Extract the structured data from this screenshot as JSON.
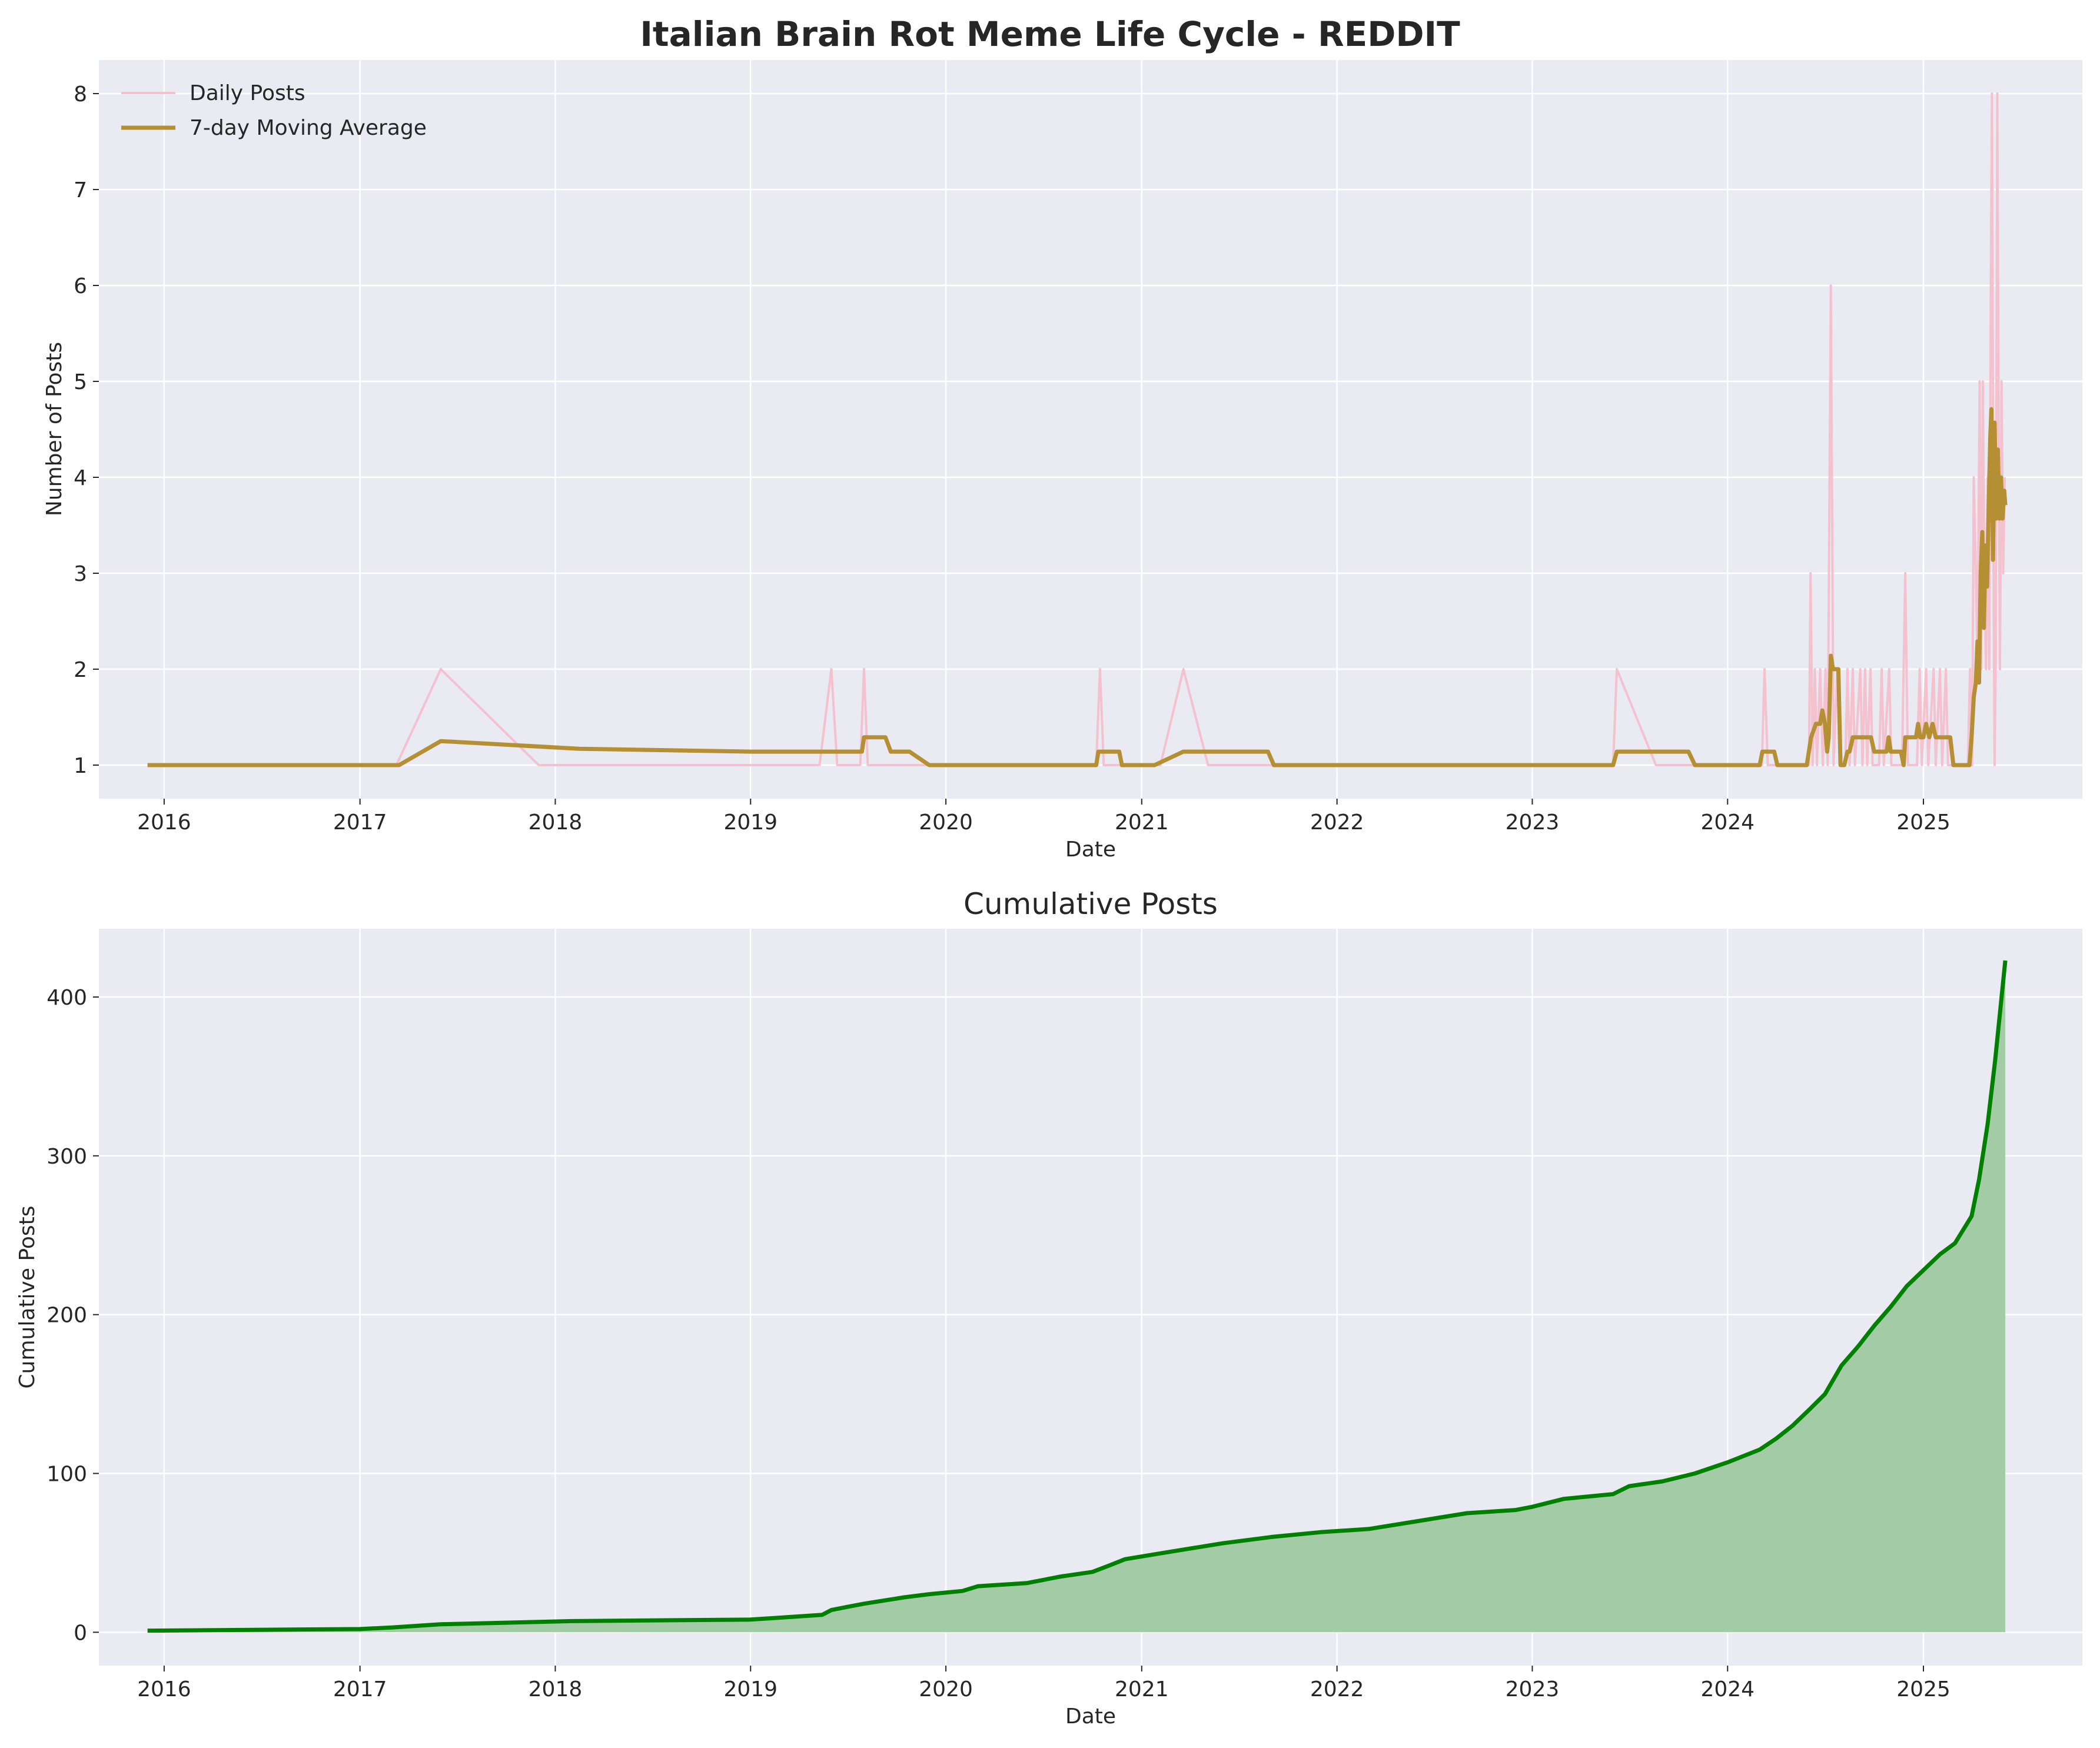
{
  "figure": {
    "title": "Italian Brain Rot Meme Life Cycle - REDDIT"
  },
  "colors": {
    "daily": "#f4c2cf",
    "moving_average": "#b58f33",
    "cumulative_line": "#008000",
    "cumulative_fill": "#a3cca6"
  },
  "chart_data": [
    {
      "type": "line",
      "title": "",
      "xlabel": "Date",
      "ylabel": "Number of Posts",
      "xlim": [
        "2015-09-01",
        "2025-10-25"
      ],
      "ylim": [
        0.65,
        8.35
      ],
      "xticks": [
        "2016",
        "2017",
        "2018",
        "2019",
        "2020",
        "2021",
        "2022",
        "2023",
        "2024",
        "2025"
      ],
      "yticks": [
        1,
        2,
        3,
        4,
        5,
        6,
        7,
        8
      ],
      "grid": true,
      "legend": "top-left",
      "series": [
        {
          "name": "Daily Posts",
          "color": "daily",
          "points": [
            [
              "2015-12-01",
              1
            ],
            [
              "2017-03-10",
              1
            ],
            [
              "2017-06-01",
              2
            ],
            [
              "2017-12-01",
              1
            ],
            [
              "2019-05-10",
              1
            ],
            [
              "2019-06-01",
              2
            ],
            [
              "2019-06-12",
              1
            ],
            [
              "2019-07-25",
              1
            ],
            [
              "2019-08-01",
              2
            ],
            [
              "2019-08-08",
              1
            ],
            [
              "2020-10-08",
              1
            ],
            [
              "2020-10-15",
              2
            ],
            [
              "2020-10-22",
              1
            ],
            [
              "2021-02-05",
              1
            ],
            [
              "2021-03-20",
              2
            ],
            [
              "2021-05-05",
              1
            ],
            [
              "2023-06-01",
              1
            ],
            [
              "2023-06-08",
              2
            ],
            [
              "2023-08-20",
              1
            ],
            [
              "2024-03-05",
              1
            ],
            [
              "2024-03-10",
              2
            ],
            [
              "2024-03-16",
              1
            ],
            [
              "2024-06-01",
              1
            ],
            [
              "2024-06-04",
              3
            ],
            [
              "2024-06-08",
              1
            ],
            [
              "2024-06-12",
              2
            ],
            [
              "2024-06-16",
              1
            ],
            [
              "2024-06-22",
              2
            ],
            [
              "2024-06-27",
              1
            ],
            [
              "2024-07-02",
              2
            ],
            [
              "2024-07-06",
              1
            ],
            [
              "2024-07-12",
              6
            ],
            [
              "2024-07-17",
              1
            ],
            [
              "2024-07-24",
              2
            ],
            [
              "2024-07-29",
              1
            ],
            [
              "2024-08-08",
              1
            ],
            [
              "2024-08-12",
              2
            ],
            [
              "2024-08-16",
              1
            ],
            [
              "2024-08-22",
              2
            ],
            [
              "2024-08-26",
              1
            ],
            [
              "2024-09-05",
              2
            ],
            [
              "2024-09-09",
              1
            ],
            [
              "2024-09-14",
              2
            ],
            [
              "2024-09-18",
              1
            ],
            [
              "2024-09-24",
              2
            ],
            [
              "2024-09-28",
              1
            ],
            [
              "2024-10-10",
              1
            ],
            [
              "2024-10-15",
              2
            ],
            [
              "2024-10-19",
              1
            ],
            [
              "2024-10-29",
              2
            ],
            [
              "2024-11-02",
              1
            ],
            [
              "2024-11-22",
              1
            ],
            [
              "2024-11-28",
              3
            ],
            [
              "2024-12-03",
              1
            ],
            [
              "2024-12-20",
              1
            ],
            [
              "2024-12-25",
              2
            ],
            [
              "2024-12-29",
              1
            ],
            [
              "2025-01-06",
              2
            ],
            [
              "2025-01-10",
              1
            ],
            [
              "2025-01-20",
              2
            ],
            [
              "2025-01-24",
              1
            ],
            [
              "2025-02-01",
              2
            ],
            [
              "2025-02-05",
              1
            ],
            [
              "2025-02-12",
              2
            ],
            [
              "2025-02-16",
              1
            ],
            [
              "2025-03-25",
              1
            ],
            [
              "2025-03-29",
              2
            ],
            [
              "2025-04-02",
              1
            ],
            [
              "2025-04-05",
              4
            ],
            [
              "2025-04-09",
              3
            ],
            [
              "2025-04-12",
              2
            ],
            [
              "2025-04-16",
              5
            ],
            [
              "2025-04-19",
              2
            ],
            [
              "2025-04-22",
              5
            ],
            [
              "2025-04-25",
              3
            ],
            [
              "2025-04-28",
              2
            ],
            [
              "2025-05-01",
              4
            ],
            [
              "2025-05-04",
              2
            ],
            [
              "2025-05-07",
              6
            ],
            [
              "2025-05-09",
              8
            ],
            [
              "2025-05-12",
              3
            ],
            [
              "2025-05-14",
              1
            ],
            [
              "2025-05-16",
              2
            ],
            [
              "2025-05-19",
              8
            ],
            [
              "2025-05-22",
              4
            ],
            [
              "2025-05-24",
              2
            ],
            [
              "2025-05-27",
              5
            ],
            [
              "2025-05-30",
              3
            ],
            [
              "2025-06-02",
              4
            ]
          ]
        },
        {
          "name": "7-day Moving Average",
          "color": "moving_average",
          "points": [
            [
              "2015-12-01",
              1
            ],
            [
              "2017-03-15",
              1
            ],
            [
              "2017-06-01",
              1.25
            ],
            [
              "2018-02-15",
              1.17
            ],
            [
              "2019-01-01",
              1.14
            ],
            [
              "2019-07-28",
              1.14
            ],
            [
              "2019-08-01",
              1.29
            ],
            [
              "2019-09-10",
              1.29
            ],
            [
              "2019-09-20",
              1.14
            ],
            [
              "2019-10-25",
              1.14
            ],
            [
              "2019-12-01",
              1
            ],
            [
              "2020-10-08",
              1
            ],
            [
              "2020-10-12",
              1.14
            ],
            [
              "2020-11-20",
              1.14
            ],
            [
              "2020-11-25",
              1
            ],
            [
              "2021-01-25",
              1
            ],
            [
              "2021-03-20",
              1.14
            ],
            [
              "2021-08-25",
              1.14
            ],
            [
              "2021-09-05",
              1
            ],
            [
              "2023-06-01",
              1
            ],
            [
              "2023-06-08",
              1.14
            ],
            [
              "2023-10-20",
              1.14
            ],
            [
              "2023-11-01",
              1
            ],
            [
              "2024-03-01",
              1
            ],
            [
              "2024-03-06",
              1.14
            ],
            [
              "2024-03-28",
              1.14
            ],
            [
              "2024-04-03",
              1
            ],
            [
              "2024-05-28",
              1
            ],
            [
              "2024-06-05",
              1.29
            ],
            [
              "2024-06-14",
              1.43
            ],
            [
              "2024-06-22",
              1.43
            ],
            [
              "2024-06-26",
              1.57
            ],
            [
              "2024-07-01",
              1.43
            ],
            [
              "2024-07-05",
              1.14
            ],
            [
              "2024-07-08",
              1.29
            ],
            [
              "2024-07-12",
              2.14
            ],
            [
              "2024-07-16",
              2
            ],
            [
              "2024-07-26",
              2
            ],
            [
              "2024-07-30",
              1
            ],
            [
              "2024-08-06",
              1
            ],
            [
              "2024-08-12",
              1.14
            ],
            [
              "2024-08-16",
              1.14
            ],
            [
              "2024-08-22",
              1.29
            ],
            [
              "2024-09-25",
              1.29
            ],
            [
              "2024-10-01",
              1.14
            ],
            [
              "2024-10-24",
              1.14
            ],
            [
              "2024-10-28",
              1.29
            ],
            [
              "2024-11-01",
              1.14
            ],
            [
              "2024-11-20",
              1.14
            ],
            [
              "2024-11-25",
              1
            ],
            [
              "2024-11-28",
              1.29
            ],
            [
              "2024-12-18",
              1.29
            ],
            [
              "2024-12-22",
              1.43
            ],
            [
              "2024-12-26",
              1.29
            ],
            [
              "2025-01-01",
              1.29
            ],
            [
              "2025-01-06",
              1.43
            ],
            [
              "2025-01-12",
              1.29
            ],
            [
              "2025-01-18",
              1.43
            ],
            [
              "2025-01-24",
              1.29
            ],
            [
              "2025-02-20",
              1.29
            ],
            [
              "2025-02-26",
              1
            ],
            [
              "2025-03-28",
              1
            ],
            [
              "2025-04-01",
              1.29
            ],
            [
              "2025-04-05",
              1.71
            ],
            [
              "2025-04-09",
              1.86
            ],
            [
              "2025-04-12",
              2.29
            ],
            [
              "2025-04-15",
              1.86
            ],
            [
              "2025-04-18",
              3
            ],
            [
              "2025-04-21",
              3.43
            ],
            [
              "2025-04-24",
              2.43
            ],
            [
              "2025-04-27",
              3.29
            ],
            [
              "2025-04-30",
              2.86
            ],
            [
              "2025-05-03",
              3.71
            ],
            [
              "2025-05-06",
              4.43
            ],
            [
              "2025-05-08",
              4.71
            ],
            [
              "2025-05-11",
              3.14
            ],
            [
              "2025-05-14",
              4.57
            ],
            [
              "2025-05-17",
              3.57
            ],
            [
              "2025-05-20",
              4.29
            ],
            [
              "2025-05-23",
              3.57
            ],
            [
              "2025-05-26",
              4
            ],
            [
              "2025-05-29",
              3.57
            ],
            [
              "2025-06-01",
              3.86
            ],
            [
              "2025-06-03",
              3.71
            ]
          ]
        }
      ]
    },
    {
      "type": "area",
      "title": "Cumulative Posts",
      "xlabel": "Date",
      "ylabel": "Cumulative Posts",
      "xlim": [
        "2015-09-01",
        "2025-10-25"
      ],
      "ylim": [
        -21,
        443
      ],
      "xticks": [
        "2016",
        "2017",
        "2018",
        "2019",
        "2020",
        "2021",
        "2022",
        "2023",
        "2024",
        "2025"
      ],
      "yticks": [
        0,
        100,
        200,
        300,
        400
      ],
      "grid": true,
      "series": [
        {
          "color": "cumulative_line",
          "fill": "cumulative_fill",
          "points": [
            [
              "2015-12-01",
              1
            ],
            [
              "2017-01-01",
              2
            ],
            [
              "2017-03-01",
              3
            ],
            [
              "2017-06-01",
              5
            ],
            [
              "2018-02-01",
              7
            ],
            [
              "2019-01-01",
              8
            ],
            [
              "2019-02-15",
              9
            ],
            [
              "2019-05-15",
              11
            ],
            [
              "2019-06-01",
              14
            ],
            [
              "2019-07-01",
              16
            ],
            [
              "2019-08-01",
              18
            ],
            [
              "2019-10-15",
              22
            ],
            [
              "2019-12-01",
              24
            ],
            [
              "2020-02-01",
              26
            ],
            [
              "2020-03-01",
              29
            ],
            [
              "2020-06-01",
              31
            ],
            [
              "2020-08-01",
              35
            ],
            [
              "2020-10-01",
              38
            ],
            [
              "2020-11-01",
              42
            ],
            [
              "2020-12-01",
              46
            ],
            [
              "2021-03-01",
              51
            ],
            [
              "2021-06-01",
              56
            ],
            [
              "2021-09-01",
              60
            ],
            [
              "2021-12-01",
              63
            ],
            [
              "2022-03-01",
              65
            ],
            [
              "2022-06-01",
              70
            ],
            [
              "2022-09-01",
              75
            ],
            [
              "2022-12-01",
              77
            ],
            [
              "2023-01-01",
              79
            ],
            [
              "2023-03-01",
              84
            ],
            [
              "2023-06-01",
              87
            ],
            [
              "2023-07-01",
              92
            ],
            [
              "2023-09-01",
              95
            ],
            [
              "2023-11-01",
              100
            ],
            [
              "2024-01-01",
              107
            ],
            [
              "2024-03-01",
              115
            ],
            [
              "2024-04-01",
              122
            ],
            [
              "2024-05-01",
              130
            ],
            [
              "2024-06-01",
              140
            ],
            [
              "2024-07-01",
              150
            ],
            [
              "2024-08-01",
              168
            ],
            [
              "2024-09-01",
              180
            ],
            [
              "2024-10-01",
              193
            ],
            [
              "2024-11-01",
              205
            ],
            [
              "2024-12-01",
              218
            ],
            [
              "2025-01-01",
              228
            ],
            [
              "2025-02-01",
              238
            ],
            [
              "2025-03-01",
              245
            ],
            [
              "2025-04-01",
              262
            ],
            [
              "2025-04-15",
              285
            ],
            [
              "2025-05-01",
              320
            ],
            [
              "2025-05-15",
              360
            ],
            [
              "2025-06-03",
              423
            ]
          ]
        }
      ]
    }
  ]
}
